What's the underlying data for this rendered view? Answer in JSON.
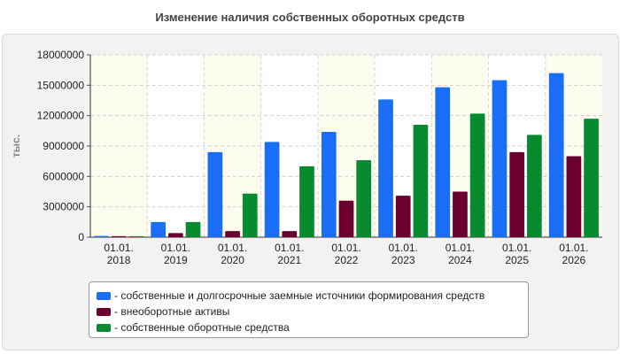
{
  "chart_data": {
    "type": "bar",
    "title": "Изменение наличия собственных оборотных средств",
    "ylabel": "тыс.",
    "xlabel": "",
    "ylim": [
      0,
      18000000
    ],
    "yticks": [
      0,
      3000000,
      6000000,
      9000000,
      12000000,
      15000000,
      18000000
    ],
    "grid": true,
    "legend_position": "bottom",
    "categories": [
      [
        "01.01.",
        "2018"
      ],
      [
        "01.01.",
        "2019"
      ],
      [
        "01.01.",
        "2020"
      ],
      [
        "01.01.",
        "2021"
      ],
      [
        "01.01.",
        "2022"
      ],
      [
        "01.01.",
        "2023"
      ],
      [
        "01.01.",
        "2024"
      ],
      [
        "01.01.",
        "2025"
      ],
      [
        "01.01.",
        "2026"
      ]
    ],
    "series": [
      {
        "name": "- собственные и долгосрочные заемные источники формирования средств",
        "color": "#1a6ef5",
        "values": [
          120000,
          1500000,
          8400000,
          9400000,
          10400000,
          13600000,
          14800000,
          15500000,
          16200000
        ]
      },
      {
        "name": "- внеоборотные активы",
        "color": "#6b0030",
        "values": [
          100000,
          400000,
          600000,
          600000,
          3600000,
          4100000,
          4500000,
          8400000,
          8000000
        ]
      },
      {
        "name": "- собственные оборотные средства",
        "color": "#088a2e",
        "values": [
          100000,
          1500000,
          4300000,
          7000000,
          7600000,
          11100000,
          12200000,
          10100000,
          11700000
        ]
      }
    ]
  }
}
